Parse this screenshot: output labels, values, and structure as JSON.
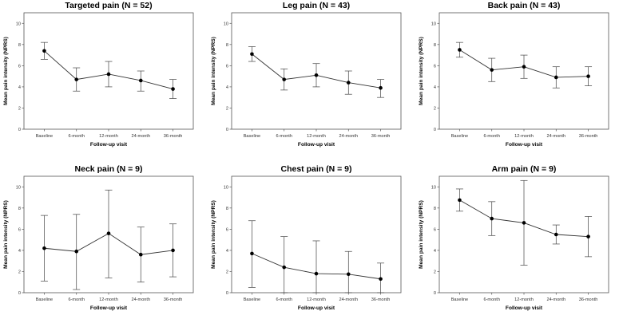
{
  "chart_data": [
    {
      "type": "line",
      "title": "Targeted pain (N = 52)",
      "xlabel": "Follow-up visit",
      "ylabel": "Mean pain intensity (NPRS)",
      "categories": [
        "Baseline",
        "6-month",
        "12-month",
        "24-month",
        "36-month"
      ],
      "ylim": [
        0,
        11
      ],
      "yticks": [
        0,
        2,
        4,
        6,
        8,
        10
      ],
      "series": [
        {
          "name": "Mean",
          "values": [
            7.4,
            4.7,
            5.2,
            4.6,
            3.8
          ],
          "lower": [
            6.6,
            3.6,
            4.0,
            3.6,
            2.9
          ],
          "upper": [
            8.2,
            5.8,
            6.4,
            5.5,
            4.7
          ]
        }
      ]
    },
    {
      "type": "line",
      "title": "Leg pain (N = 43)",
      "xlabel": "Follow-up visit",
      "ylabel": "Mean pain intensity (NPRS)",
      "categories": [
        "Baseline",
        "6-month",
        "12-month",
        "24-month",
        "36-month"
      ],
      "ylim": [
        0,
        11
      ],
      "yticks": [
        0,
        2,
        4,
        6,
        8,
        10
      ],
      "series": [
        {
          "name": "Mean",
          "values": [
            7.1,
            4.7,
            5.1,
            4.4,
            3.9
          ],
          "lower": [
            6.4,
            3.7,
            4.0,
            3.3,
            3.0
          ],
          "upper": [
            7.8,
            5.7,
            6.2,
            5.5,
            4.7
          ]
        }
      ]
    },
    {
      "type": "line",
      "title": "Back pain (N = 43)",
      "xlabel": "Follow-up visit",
      "ylabel": "Mean pain intensity (NPRS)",
      "categories": [
        "Baseline",
        "6-month",
        "12-month",
        "24-month",
        "36-month"
      ],
      "ylim": [
        0,
        11
      ],
      "yticks": [
        0,
        2,
        4,
        6,
        8,
        10
      ],
      "series": [
        {
          "name": "Mean",
          "values": [
            7.5,
            5.6,
            5.9,
            4.9,
            5.0
          ],
          "lower": [
            6.8,
            4.5,
            4.8,
            3.9,
            4.1
          ],
          "upper": [
            8.2,
            6.7,
            7.0,
            5.9,
            5.9
          ]
        }
      ]
    },
    {
      "type": "line",
      "title": "Neck pain (N = 9)",
      "xlabel": "Follow-up visit",
      "ylabel": "Mean pain intensity (NPRS)",
      "categories": [
        "Baseline",
        "6-month",
        "12-month",
        "24-month",
        "36-month"
      ],
      "ylim": [
        0,
        11
      ],
      "yticks": [
        0,
        2,
        4,
        6,
        8,
        10
      ],
      "series": [
        {
          "name": "Mean",
          "values": [
            4.2,
            3.9,
            5.6,
            3.6,
            4.0
          ],
          "lower": [
            1.1,
            0.3,
            1.4,
            1.0,
            1.5
          ],
          "upper": [
            7.3,
            7.4,
            9.7,
            6.2,
            6.5
          ]
        }
      ]
    },
    {
      "type": "line",
      "title": "Chest pain (N = 9)",
      "xlabel": "Follow-up visit",
      "ylabel": "Mean pain intensity (NPRS)",
      "categories": [
        "Baseline",
        "6-month",
        "12-month",
        "24-month",
        "36-month"
      ],
      "ylim": [
        0,
        11
      ],
      "yticks": [
        0,
        2,
        4,
        6,
        8,
        10
      ],
      "series": [
        {
          "name": "Mean",
          "values": [
            3.7,
            2.4,
            1.8,
            1.75,
            1.3
          ],
          "lower": [
            0.5,
            0,
            0,
            0,
            0
          ],
          "upper": [
            6.8,
            5.3,
            4.9,
            3.9,
            2.8
          ]
        }
      ]
    },
    {
      "type": "line",
      "title": "Arm pain (N = 9)",
      "xlabel": "Follow-up visit",
      "ylabel": "Mean pain intensity (NPRS)",
      "categories": [
        "Baseline",
        "6-month",
        "12-month",
        "24-month",
        "36-month"
      ],
      "ylim": [
        0,
        11
      ],
      "yticks": [
        0,
        2,
        4,
        6,
        8,
        10
      ],
      "series": [
        {
          "name": "Mean",
          "values": [
            8.75,
            7.0,
            6.6,
            5.5,
            5.3
          ],
          "lower": [
            7.7,
            5.4,
            2.6,
            4.6,
            3.4
          ],
          "upper": [
            9.8,
            8.6,
            10.6,
            6.4,
            7.2
          ]
        }
      ]
    }
  ]
}
